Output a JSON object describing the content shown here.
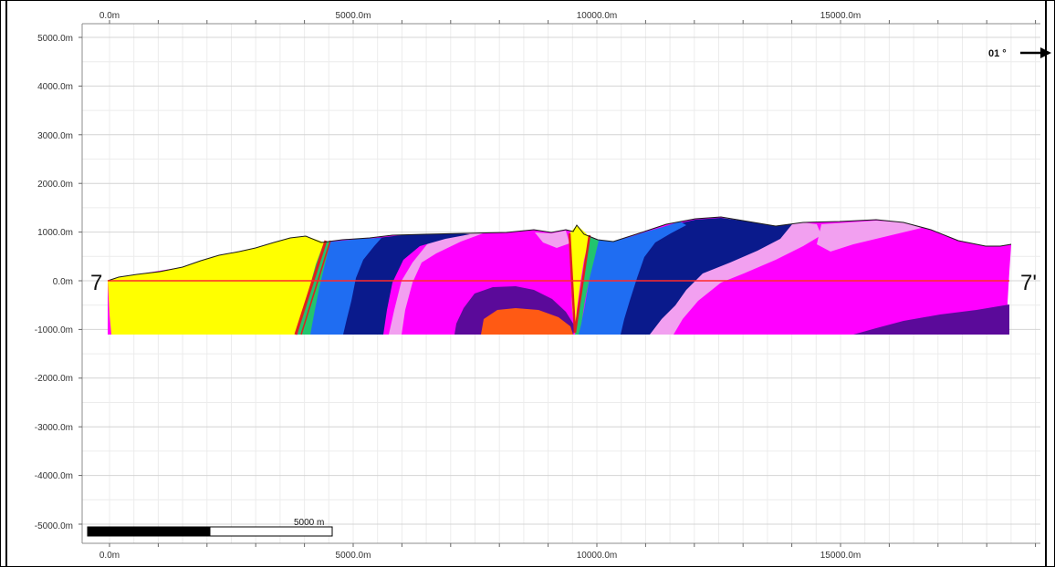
{
  "section": {
    "start_label": "7",
    "end_label": "7'",
    "azimuth_label": "01 °",
    "scale_bar_label": "5000 m"
  },
  "axes": {
    "x_ticks": [
      "0.0m",
      "5000.0m",
      "10000.0m",
      "15000.0m"
    ],
    "y_ticks": [
      "5000.0m",
      "4000.0m",
      "3000.0m",
      "2000.0m",
      "1000.0m",
      "0.0m",
      "-1000.0m",
      "-2000.0m",
      "-3000.0m",
      "-4000.0m",
      "-5000.0m"
    ]
  },
  "units": {
    "colors": {
      "yellow": "#ffff00",
      "green": "#22c46e",
      "mid_blue": "#1f6df2",
      "dark_blue": "#0a1a8c",
      "light_pink": "#f2a0f0",
      "magenta": "#ff00ff",
      "purple": "#5b0a9a",
      "orange": "#ff5a14",
      "fault_red": "#e0201e",
      "baseline_red": "#ff2a2a"
    }
  }
}
